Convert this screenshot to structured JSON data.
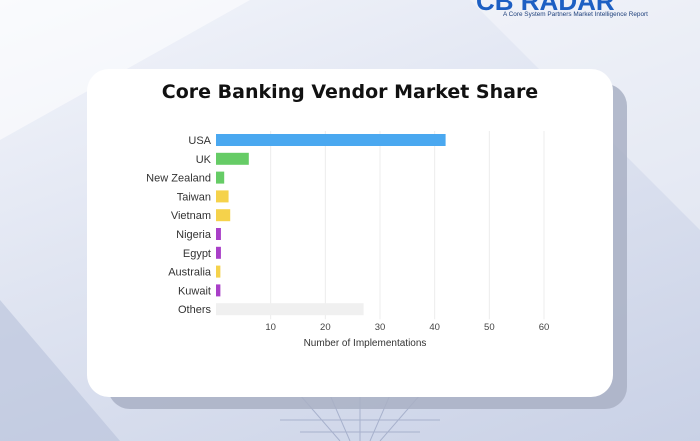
{
  "brand": {
    "logo_text": "CB RADAR",
    "tagline": "A Core System Partners Market Intelligence Report"
  },
  "chart_data": {
    "type": "bar",
    "orientation": "horizontal",
    "title": "Core Banking Vendor Market Share",
    "xlabel": "Number of Implementations",
    "ylabel": "",
    "categories": [
      "USA",
      "UK",
      "New Zealand",
      "Taiwan",
      "Vietnam",
      "Nigeria",
      "Egypt",
      "Australia",
      "Kuwait",
      "Others"
    ],
    "values": [
      42,
      6,
      1.5,
      2.3,
      2.6,
      0.9,
      0.9,
      0.8,
      0.8,
      27
    ],
    "bar_colors": [
      "#4aa8f0",
      "#66cc66",
      "#66cc66",
      "#f5d24b",
      "#f5d24b",
      "#a93fc8",
      "#a93fc8",
      "#f5d24b",
      "#a93fc8",
      "#f0f0f0"
    ],
    "xlim": [
      0,
      60
    ],
    "xticks": [
      10,
      20,
      30,
      40,
      50,
      60
    ],
    "grid": true
  }
}
